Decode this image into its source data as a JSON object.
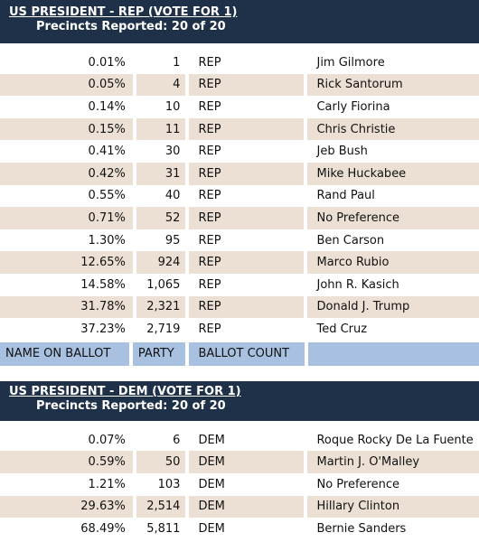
{
  "rep": {
    "title": "US PRESIDENT - REP (VOTE FOR 1)",
    "precincts": "Precincts Reported: 20 of 20",
    "rows": [
      {
        "pct": "0.01%",
        "count": "1",
        "party": "REP",
        "name": "Jim Gilmore"
      },
      {
        "pct": "0.05%",
        "count": "4",
        "party": "REP",
        "name": "Rick Santorum"
      },
      {
        "pct": "0.14%",
        "count": "10",
        "party": "REP",
        "name": "Carly Fiorina"
      },
      {
        "pct": "0.15%",
        "count": "11",
        "party": "REP",
        "name": "Chris Christie"
      },
      {
        "pct": "0.41%",
        "count": "30",
        "party": "REP",
        "name": "Jeb Bush"
      },
      {
        "pct": "0.42%",
        "count": "31",
        "party": "REP",
        "name": "Mike Huckabee"
      },
      {
        "pct": "0.55%",
        "count": "40",
        "party": "REP",
        "name": "Rand Paul"
      },
      {
        "pct": "0.71%",
        "count": "52",
        "party": "REP",
        "name": "No Preference"
      },
      {
        "pct": "1.30%",
        "count": "95",
        "party": "REP",
        "name": "Ben Carson"
      },
      {
        "pct": "12.65%",
        "count": "924",
        "party": "REP",
        "name": "Marco Rubio"
      },
      {
        "pct": "14.58%",
        "count": "1,065",
        "party": "REP",
        "name": "John R. Kasich"
      },
      {
        "pct": "31.78%",
        "count": "2,321",
        "party": "REP",
        "name": "Donald J. Trump"
      },
      {
        "pct": "37.23%",
        "count": "2,719",
        "party": "REP",
        "name": "Ted Cruz"
      }
    ]
  },
  "columns": {
    "name_on_ballot": "NAME ON BALLOT",
    "party": "PARTY",
    "ballot_count": "BALLOT COUNT",
    "blank": ""
  },
  "dem": {
    "title": "US PRESIDENT - DEM (VOTE FOR 1)",
    "precincts": "Precincts Reported: 20 of 20",
    "rows": [
      {
        "pct": "0.07%",
        "count": "6",
        "party": "DEM",
        "name": "Roque Rocky De La Fuente"
      },
      {
        "pct": "0.59%",
        "count": "50",
        "party": "DEM",
        "name": "Martin J. O'Malley"
      },
      {
        "pct": "1.21%",
        "count": "103",
        "party": "DEM",
        "name": "No Preference"
      },
      {
        "pct": "29.63%",
        "count": "2,514",
        "party": "DEM",
        "name": "Hillary Clinton"
      },
      {
        "pct": "68.49%",
        "count": "5,811",
        "party": "DEM",
        "name": "Bernie Sanders"
      }
    ]
  },
  "colors": {
    "header_bg": "#1e3148",
    "stripe": "#ece0d4",
    "column_header_bg": "#a8c1e0"
  }
}
